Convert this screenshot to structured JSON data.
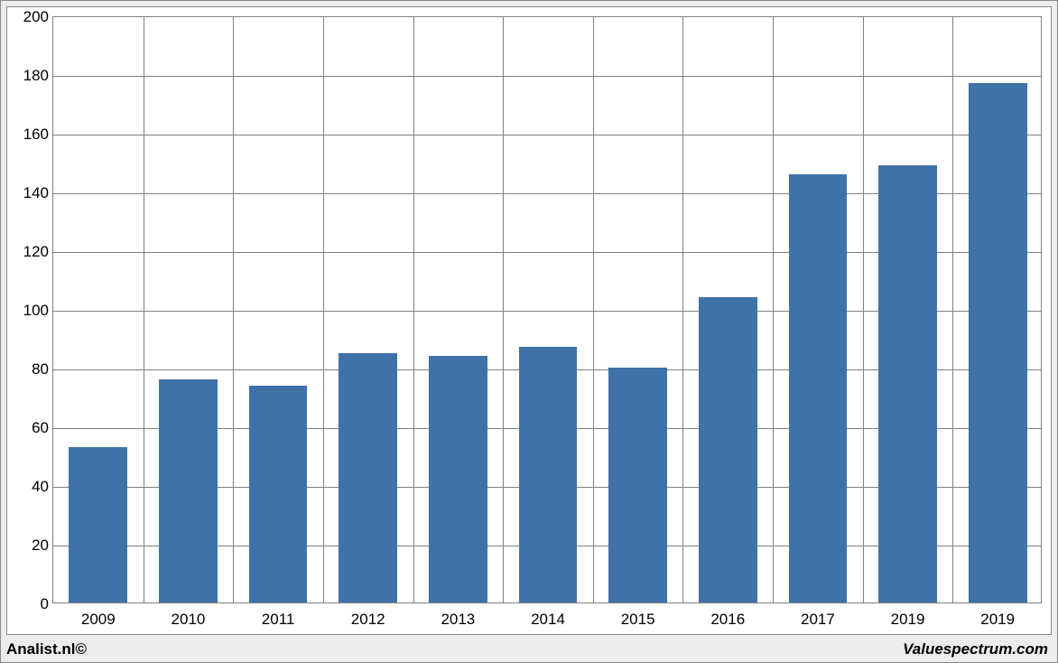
{
  "chart": {
    "type": "bar",
    "background_color": "#ffffff",
    "outer_background": "#ececec",
    "grid_color": "#808080",
    "bar_color": "#3e72a8",
    "ylim": [
      0,
      200
    ],
    "ytick_step": 20,
    "yticks": [
      0,
      20,
      40,
      60,
      80,
      100,
      120,
      140,
      160,
      180,
      200
    ],
    "categories": [
      "2009",
      "2010",
      "2011",
      "2012",
      "2013",
      "2014",
      "2015",
      "2016",
      "2017",
      "2019",
      "2019"
    ],
    "values": [
      53,
      76,
      74,
      85,
      84,
      87,
      80,
      104,
      146,
      149,
      177
    ],
    "bar_width_ratio": 0.65,
    "tick_fontsize": 17,
    "tick_color": "#000000"
  },
  "footer": {
    "left": "Analist.nl©",
    "right": "Valuespectrum.com"
  }
}
